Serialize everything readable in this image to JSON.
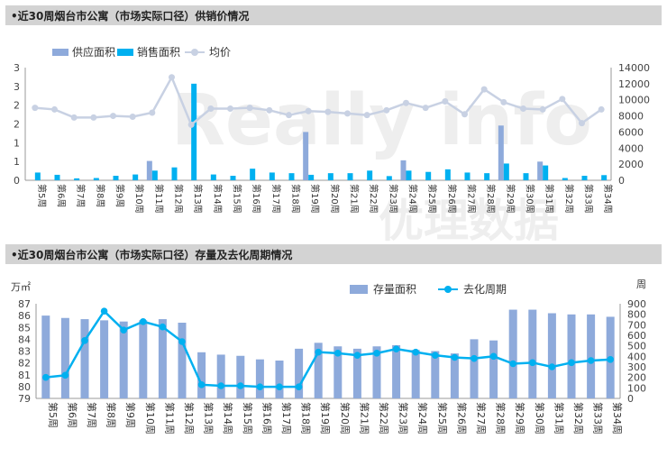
{
  "panel1": {
    "header": "•近30周烟台市公寓（市场实际口径）供销价情况"
  },
  "panel2": {
    "header": "•近30周烟台市公寓（市场实际口径）存量及去化周期情况"
  },
  "watermark": {
    "latin": "Really info",
    "chinese": "优理数据"
  },
  "chart_data": [
    {
      "type": "bar",
      "title": "近30周烟台市公寓（市场实际口径）供销价情况",
      "categories": [
        "第5周",
        "第6周",
        "第7周",
        "第8周",
        "第9周",
        "第10周",
        "第11周",
        "第12周",
        "第13周",
        "第14周",
        "第15周",
        "第16周",
        "第17周",
        "第18周",
        "第19周",
        "第20周",
        "第21周",
        "第22周",
        "第23周",
        "第24周",
        "第25周",
        "第26周",
        "第27周",
        "第28周",
        "第29周",
        "第30周",
        "第31周",
        "第32周",
        "第33周",
        "第34周"
      ],
      "y_ticks": [
        "0",
        "1",
        "1",
        "2",
        "2",
        "3",
        "3"
      ],
      "y_max": 3.5,
      "y2_ticks": [
        "0",
        "2000",
        "4000",
        "6000",
        "8000",
        "10000",
        "12000",
        "14000"
      ],
      "y2_max": 14000,
      "series": [
        {
          "name": "供应面积",
          "kind": "bar",
          "axis": "left",
          "color": "#8eaadb",
          "values": [
            0,
            0,
            0,
            0,
            0,
            0,
            0.6,
            0,
            0,
            0,
            0,
            0,
            0,
            0,
            1.5,
            0,
            0,
            0,
            0,
            0.62,
            0,
            0,
            0,
            0,
            1.7,
            0,
            0.58,
            0,
            0,
            0
          ]
        },
        {
          "name": "销售面积",
          "kind": "bar",
          "axis": "left",
          "color": "#00b0f0",
          "values": [
            0.24,
            0.17,
            0.06,
            0.07,
            0.14,
            0.18,
            0.3,
            0.4,
            3.0,
            0.18,
            0.14,
            0.36,
            0.24,
            0.22,
            0.17,
            0.22,
            0.22,
            0.3,
            0.13,
            0.3,
            0.26,
            0.34,
            0.24,
            0.22,
            0.52,
            0.22,
            0.46,
            0.07,
            0.14,
            0.16
          ]
        },
        {
          "name": "均价",
          "kind": "line",
          "axis": "right",
          "color": "#c8d1e3",
          "values": [
            9000,
            8800,
            7800,
            7800,
            8000,
            7900,
            8400,
            12800,
            6900,
            8900,
            8900,
            9000,
            8700,
            8100,
            8600,
            8500,
            8300,
            8100,
            8700,
            9600,
            9000,
            9800,
            8200,
            11300,
            9700,
            8900,
            8800,
            10100,
            7100,
            8800
          ]
        }
      ]
    },
    {
      "type": "bar",
      "title": "近30周烟台市公寓（市场实际口径）存量及去化周期情况",
      "unit_left": "万㎡",
      "unit_right": "周",
      "categories": [
        "第5周",
        "第6周",
        "第7周",
        "第8周",
        "第9周",
        "第10周",
        "第11周",
        "第12周",
        "第13周",
        "第14周",
        "第15周",
        "第16周",
        "第17周",
        "第18周",
        "第19周",
        "第20周",
        "第21周",
        "第22周",
        "第23周",
        "第24周",
        "第25周",
        "第26周",
        "第27周",
        "第28周",
        "第29周",
        "第30周",
        "第31周",
        "第32周",
        "第33周",
        "第34周"
      ],
      "y_range": [
        79,
        87
      ],
      "y_ticks": [
        "79",
        "80",
        "81",
        "82",
        "83",
        "84",
        "85",
        "86",
        "87"
      ],
      "y2_range": [
        0,
        900
      ],
      "y2_ticks": [
        "0",
        "100",
        "200",
        "300",
        "400",
        "500",
        "600",
        "700",
        "800",
        "900"
      ],
      "series": [
        {
          "name": "存量面积",
          "kind": "bar",
          "axis": "left",
          "color": "#8eaadb",
          "values": [
            86.0,
            85.8,
            85.7,
            85.6,
            85.5,
            85.6,
            85.7,
            85.4,
            82.9,
            82.7,
            82.6,
            82.3,
            82.2,
            83.2,
            83.7,
            83.4,
            83.2,
            83.4,
            83.5,
            83.1,
            83.0,
            82.8,
            84.0,
            83.9,
            86.5,
            86.5,
            86.2,
            86.1,
            86.1,
            85.9
          ]
        },
        {
          "name": "去化周期",
          "kind": "line",
          "axis": "right",
          "color": "#00b0f0",
          "values": [
            200,
            220,
            550,
            830,
            650,
            730,
            680,
            540,
            130,
            120,
            120,
            110,
            110,
            110,
            440,
            430,
            410,
            430,
            470,
            440,
            410,
            390,
            380,
            400,
            330,
            340,
            300,
            340,
            360,
            370
          ]
        }
      ]
    }
  ]
}
